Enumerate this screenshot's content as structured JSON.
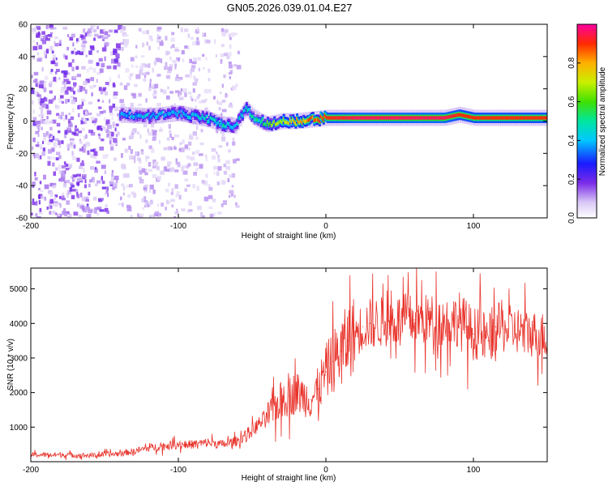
{
  "figure_title": "GN05.2026.039.01.04.E27",
  "chart_data": [
    {
      "type": "heatmap",
      "title": "GN05.2026.039.01.04.E27",
      "xlabel": "Height of straight line (km)",
      "ylabel": "Frequency (Hz)",
      "xlim": [
        -200,
        150
      ],
      "ylim": [
        -60,
        60
      ],
      "xticks": [
        -200,
        -100,
        0,
        100
      ],
      "yticks": [
        -60,
        -40,
        -20,
        0,
        20,
        40,
        60
      ],
      "xtick_labels": [
        "-200",
        "-100",
        "0",
        "100"
      ],
      "ytick_labels": [
        "-60",
        "-40",
        "-20",
        "0",
        "20",
        "40",
        "60"
      ],
      "colorbar": {
        "label": "Normalized spectral amplitude",
        "range": [
          0,
          1
        ],
        "ticks": [
          0,
          0.2,
          0.4,
          0.6,
          0.8
        ],
        "tick_labels": [
          "0.0",
          "0.2",
          "0.4",
          "0.6",
          "0.8"
        ]
      },
      "ridge": {
        "description_of_values": "frequency (Hz) of peak spectral amplitude vs height (km)",
        "x": [
          -140,
          -120,
          -100,
          -80,
          -70,
          -62,
          -55,
          -50,
          -45,
          -40,
          -30,
          -20,
          -10,
          0,
          20,
          50,
          80,
          90,
          100,
          110,
          150
        ],
        "freq": [
          4,
          3,
          5,
          1,
          -2,
          -3,
          8,
          3,
          0,
          -2,
          0,
          0,
          1,
          2,
          2,
          2,
          2,
          4,
          2,
          2,
          2
        ],
        "amplitude": [
          0.35,
          0.4,
          0.4,
          0.45,
          0.5,
          0.4,
          0.45,
          0.5,
          0.5,
          0.6,
          0.7,
          0.8,
          0.85,
          0.9,
          0.95,
          0.95,
          0.95,
          0.9,
          0.9,
          0.9,
          0.9
        ]
      },
      "noise_region_x": [
        -200,
        -60
      ]
    },
    {
      "type": "line",
      "xlabel": "Height of straight line (km)",
      "ylabel": "SNR (10 * v/v)",
      "xlim": [
        -200,
        150
      ],
      "ylim": [
        0,
        5600
      ],
      "xticks": [
        -200,
        -100,
        0,
        100
      ],
      "yticks": [
        1000,
        2000,
        3000,
        4000,
        5000
      ],
      "xtick_labels": [
        "-200",
        "-100",
        "0",
        "100"
      ],
      "ytick_labels": [
        "1000",
        "2000",
        "3000",
        "4000",
        "5000"
      ],
      "color": "#e8332b",
      "series": [
        {
          "name": "SNR",
          "x": [
            -200,
            -180,
            -160,
            -140,
            -130,
            -120,
            -110,
            -100,
            -90,
            -80,
            -70,
            -60,
            -50,
            -40,
            -30,
            -25,
            -20,
            -15,
            -10,
            -5,
            0,
            5,
            10,
            15,
            20,
            25,
            30,
            40,
            50,
            60,
            70,
            80,
            90,
            95,
            100,
            105,
            110,
            115,
            120,
            130,
            140,
            150
          ],
          "y": [
            200,
            200,
            180,
            230,
            300,
            400,
            450,
            500,
            500,
            550,
            500,
            600,
            900,
            1300,
            1800,
            1900,
            2000,
            1900,
            1800,
            2100,
            2600,
            2900,
            3200,
            3500,
            3700,
            3900,
            4000,
            4050,
            4100,
            4100,
            4100,
            4050,
            4100,
            3900,
            3700,
            3700,
            3500,
            3900,
            3850,
            3800,
            3700,
            3650
          ]
        }
      ]
    }
  ]
}
